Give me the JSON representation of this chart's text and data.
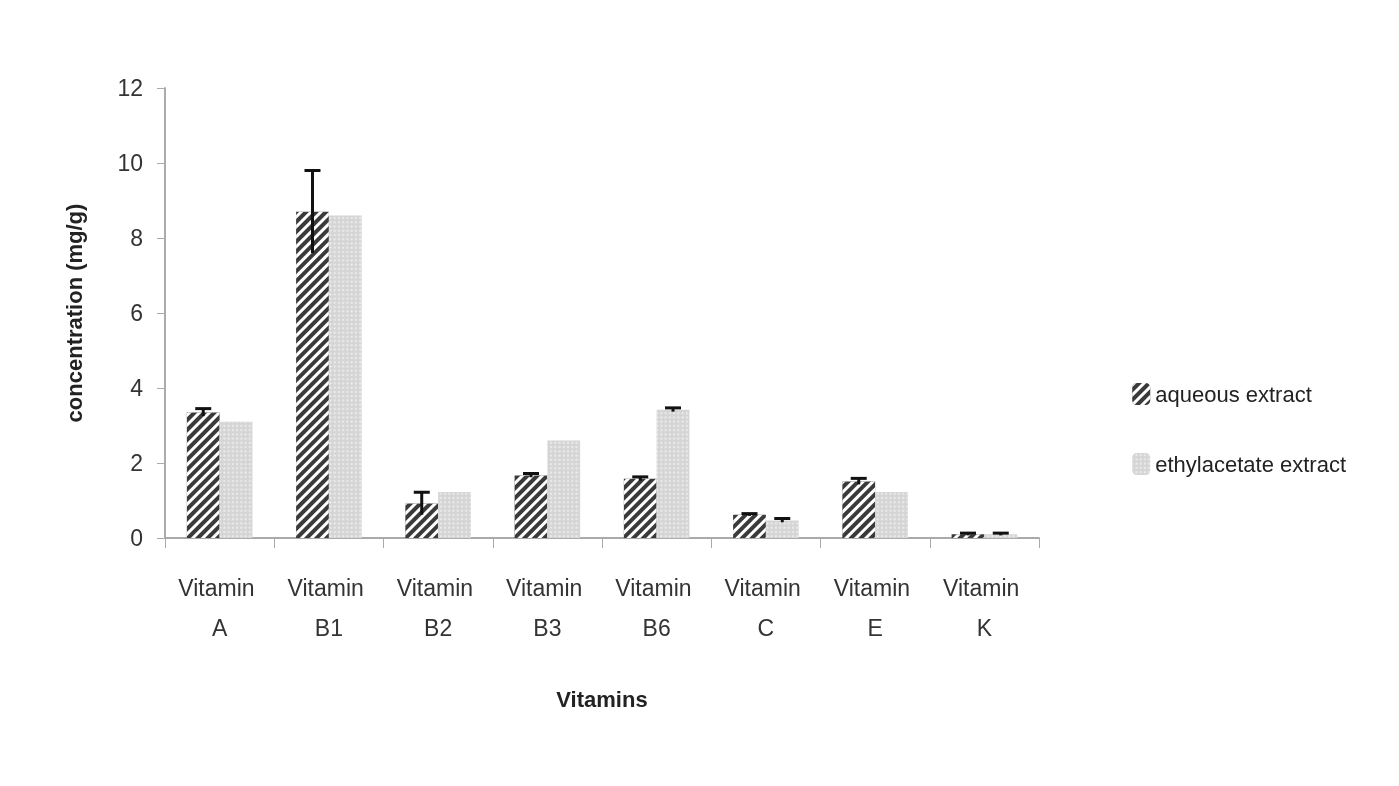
{
  "chart_data": {
    "type": "bar",
    "xlabel": "Vitamins",
    "ylabel": "concentration (mg/g)",
    "categories": [
      "Vitamin A",
      "Vitamin B1",
      "Vitamin B2",
      "Vitamin B3",
      "Vitamin B6",
      "Vitamin C",
      "Vitamin E",
      "Vitamin K"
    ],
    "series": [
      {
        "name": "aqueous extract",
        "color": "#3a3a3a",
        "values": [
          3.35,
          8.7,
          0.92,
          1.67,
          1.58,
          0.62,
          1.51,
          0.1
        ],
        "errors": [
          0.1,
          1.1,
          0.3,
          0.05,
          0.05,
          0.03,
          0.08,
          0.03
        ]
      },
      {
        "name": "ethylacetate extract",
        "color": "#d4d4d4",
        "values": [
          3.1,
          8.6,
          1.23,
          2.6,
          3.42,
          0.47,
          1.23,
          0.1
        ],
        "errors": [
          null,
          null,
          null,
          null,
          0.05,
          0.05,
          null,
          0.03
        ]
      }
    ],
    "ylim": [
      0,
      12
    ],
    "yticks": [
      0,
      2,
      4,
      6,
      8,
      10,
      12
    ],
    "grid": false,
    "legend": "right"
  }
}
